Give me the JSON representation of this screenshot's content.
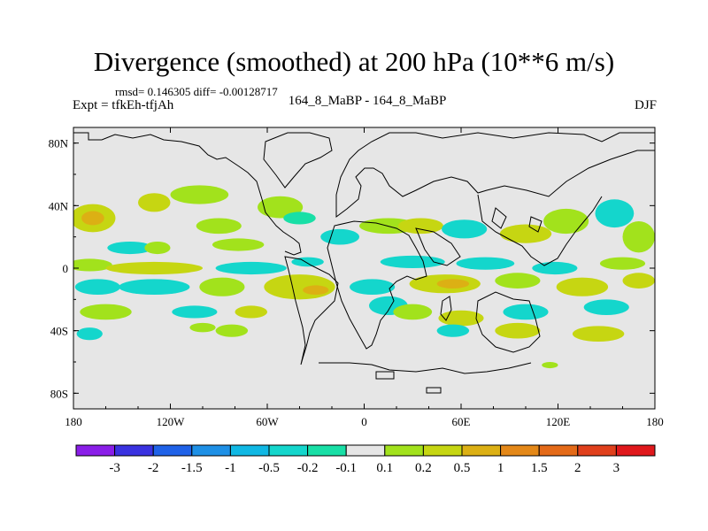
{
  "chart_data": {
    "type": "heatmap",
    "title": "Divergence (smoothed) at 200 hPa (10**6 m/s)",
    "stats_line": "rmsd= 0.146305  diff= -0.00128717",
    "left_label": "Expt = tfkEh-tfjAh",
    "center_label": "164_8_MaBP - 164_8_MaBP",
    "right_label": "DJF",
    "x_ticks": [
      "180",
      "120W",
      "60W",
      "0",
      "60E",
      "120E",
      "180"
    ],
    "x_tick_values": [
      -180,
      -120,
      -60,
      0,
      60,
      120,
      180
    ],
    "y_ticks": [
      "80N",
      "40N",
      "0",
      "40S",
      "80S"
    ],
    "y_tick_values": [
      80,
      40,
      0,
      -40,
      -80
    ],
    "xlim": [
      -180,
      180
    ],
    "ylim": [
      -90,
      90
    ],
    "background_color": "#e6e6e6",
    "colorbar": {
      "labels": [
        "-3",
        "-2",
        "-1.5",
        "-1",
        "-0.5",
        "-0.2",
        "-0.1",
        "0.1",
        "0.2",
        "0.5",
        "1",
        "1.5",
        "2",
        "3"
      ],
      "colors": [
        "#8a1ee8",
        "#3a32e0",
        "#1f62e8",
        "#1e90e6",
        "#10b8e4",
        "#14d6cc",
        "#18dfa6",
        "#e6e6e6",
        "#a2e21c",
        "#c6d612",
        "#dcb014",
        "#e48818",
        "#e46a18",
        "#e0401c",
        "#e0181c"
      ]
    },
    "blobs": [
      {
        "lon": -168,
        "lat": 32,
        "rx": 14,
        "ry": 9,
        "color": "#c6d612"
      },
      {
        "lon": -168,
        "lat": 32,
        "rx": 7,
        "ry": 4.5,
        "color": "#dcb014"
      },
      {
        "lon": -130,
        "lat": 42,
        "rx": 10,
        "ry": 6,
        "color": "#c6d612"
      },
      {
        "lon": -102,
        "lat": 47,
        "rx": 18,
        "ry": 6,
        "color": "#a2e21c"
      },
      {
        "lon": -90,
        "lat": 27,
        "rx": 14,
        "ry": 5,
        "color": "#a2e21c"
      },
      {
        "lon": -52,
        "lat": 39,
        "rx": 14,
        "ry": 7,
        "color": "#a2e21c"
      },
      {
        "lon": -40,
        "lat": 32,
        "rx": 10,
        "ry": 4,
        "color": "#18dfa6"
      },
      {
        "lon": -145,
        "lat": 13,
        "rx": 14,
        "ry": 4,
        "color": "#14d6cc"
      },
      {
        "lon": -128,
        "lat": 13,
        "rx": 8,
        "ry": 4,
        "color": "#a2e21c"
      },
      {
        "lon": -78,
        "lat": 15,
        "rx": 16,
        "ry": 4,
        "color": "#a2e21c"
      },
      {
        "lon": -15,
        "lat": 20,
        "rx": 12,
        "ry": 5,
        "color": "#14d6cc"
      },
      {
        "lon": 15,
        "lat": 27,
        "rx": 18,
        "ry": 5,
        "color": "#a2e21c"
      },
      {
        "lon": 35,
        "lat": 27,
        "rx": 14,
        "ry": 5,
        "color": "#c6d612"
      },
      {
        "lon": 62,
        "lat": 25,
        "rx": 14,
        "ry": 6,
        "color": "#14d6cc"
      },
      {
        "lon": 100,
        "lat": 22,
        "rx": 16,
        "ry": 6,
        "color": "#c6d612"
      },
      {
        "lon": 125,
        "lat": 30,
        "rx": 14,
        "ry": 8,
        "color": "#a2e21c"
      },
      {
        "lon": 155,
        "lat": 35,
        "rx": 12,
        "ry": 9,
        "color": "#14d6cc"
      },
      {
        "lon": 170,
        "lat": 20,
        "rx": 10,
        "ry": 10,
        "color": "#a2e21c"
      },
      {
        "lon": -170,
        "lat": 2,
        "rx": 14,
        "ry": 4,
        "color": "#a2e21c"
      },
      {
        "lon": -130,
        "lat": 0,
        "rx": 30,
        "ry": 4,
        "color": "#c6d612"
      },
      {
        "lon": -70,
        "lat": 0,
        "rx": 22,
        "ry": 4,
        "color": "#14d6cc"
      },
      {
        "lon": -35,
        "lat": 4,
        "rx": 10,
        "ry": 3,
        "color": "#14d6cc"
      },
      {
        "lon": 30,
        "lat": 4,
        "rx": 20,
        "ry": 4,
        "color": "#14d6cc"
      },
      {
        "lon": 75,
        "lat": 3,
        "rx": 18,
        "ry": 4,
        "color": "#14d6cc"
      },
      {
        "lon": 118,
        "lat": 0,
        "rx": 14,
        "ry": 4,
        "color": "#14d6cc"
      },
      {
        "lon": 160,
        "lat": 3,
        "rx": 14,
        "ry": 4,
        "color": "#a2e21c"
      },
      {
        "lon": -165,
        "lat": -12,
        "rx": 14,
        "ry": 5,
        "color": "#14d6cc"
      },
      {
        "lon": -130,
        "lat": -12,
        "rx": 22,
        "ry": 5,
        "color": "#14d6cc"
      },
      {
        "lon": -88,
        "lat": -12,
        "rx": 14,
        "ry": 6,
        "color": "#a2e21c"
      },
      {
        "lon": -40,
        "lat": -12,
        "rx": 22,
        "ry": 8,
        "color": "#c6d612"
      },
      {
        "lon": -30,
        "lat": -14,
        "rx": 8,
        "ry": 3,
        "color": "#dcb014"
      },
      {
        "lon": 5,
        "lat": -12,
        "rx": 14,
        "ry": 5,
        "color": "#14d6cc"
      },
      {
        "lon": 50,
        "lat": -10,
        "rx": 22,
        "ry": 6,
        "color": "#c6d612"
      },
      {
        "lon": 55,
        "lat": -10,
        "rx": 10,
        "ry": 3,
        "color": "#dcb014"
      },
      {
        "lon": 95,
        "lat": -8,
        "rx": 14,
        "ry": 5,
        "color": "#a2e21c"
      },
      {
        "lon": 135,
        "lat": -12,
        "rx": 16,
        "ry": 6,
        "color": "#c6d612"
      },
      {
        "lon": 170,
        "lat": -8,
        "rx": 10,
        "ry": 5,
        "color": "#c6d612"
      },
      {
        "lon": -160,
        "lat": -28,
        "rx": 16,
        "ry": 5,
        "color": "#a2e21c"
      },
      {
        "lon": -105,
        "lat": -28,
        "rx": 14,
        "ry": 4,
        "color": "#14d6cc"
      },
      {
        "lon": -70,
        "lat": -28,
        "rx": 10,
        "ry": 4,
        "color": "#c6d612"
      },
      {
        "lon": 15,
        "lat": -24,
        "rx": 12,
        "ry": 6,
        "color": "#14d6cc"
      },
      {
        "lon": 30,
        "lat": -28,
        "rx": 12,
        "ry": 5,
        "color": "#a2e21c"
      },
      {
        "lon": 60,
        "lat": -32,
        "rx": 14,
        "ry": 5,
        "color": "#c6d612"
      },
      {
        "lon": 100,
        "lat": -28,
        "rx": 14,
        "ry": 5,
        "color": "#14d6cc"
      },
      {
        "lon": 150,
        "lat": -25,
        "rx": 14,
        "ry": 5,
        "color": "#14d6cc"
      },
      {
        "lon": -170,
        "lat": -42,
        "rx": 8,
        "ry": 4,
        "color": "#14d6cc"
      },
      {
        "lon": -100,
        "lat": -38,
        "rx": 8,
        "ry": 3,
        "color": "#a2e21c"
      },
      {
        "lon": -82,
        "lat": -40,
        "rx": 10,
        "ry": 4,
        "color": "#a2e21c"
      },
      {
        "lon": 55,
        "lat": -40,
        "rx": 10,
        "ry": 4,
        "color": "#14d6cc"
      },
      {
        "lon": 95,
        "lat": -40,
        "rx": 14,
        "ry": 5,
        "color": "#c6d612"
      },
      {
        "lon": 145,
        "lat": -42,
        "rx": 16,
        "ry": 5,
        "color": "#c6d612"
      },
      {
        "lon": 115,
        "lat": -62,
        "rx": 5,
        "ry": 2,
        "color": "#a2e21c"
      }
    ]
  }
}
